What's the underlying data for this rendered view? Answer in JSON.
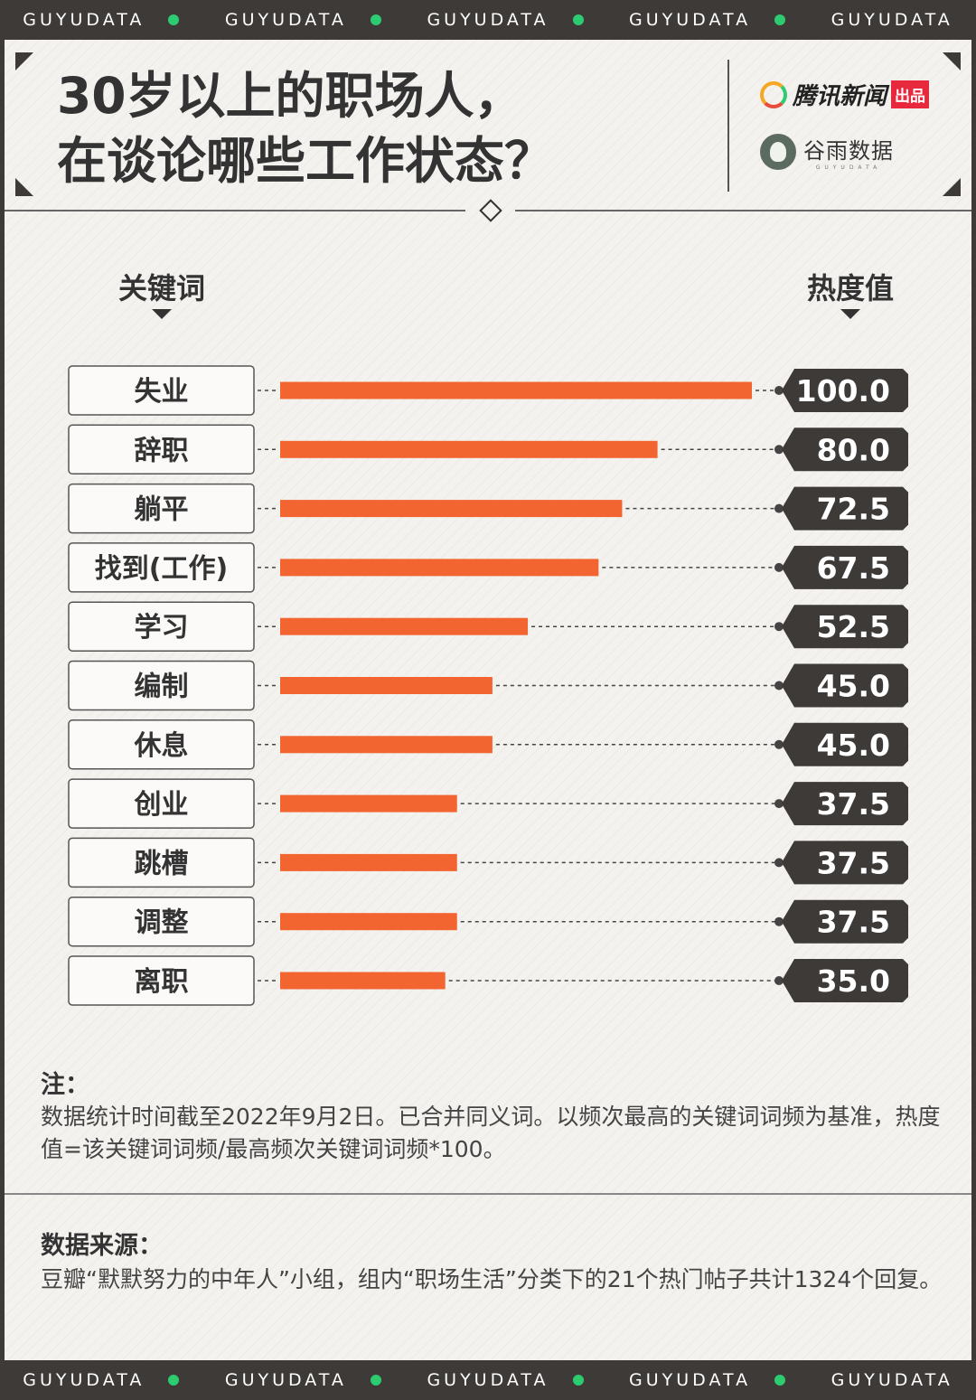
{
  "strip_text": "GUYUDATA",
  "header": {
    "title_line1": "30岁以上的职场人，",
    "title_line2": "在谈论哪些工作状态？",
    "brand_primary": "腾讯新闻",
    "brand_primary_tag": "出品",
    "brand_secondary": "谷雨数据",
    "brand_secondary_sub": "GUYUDATA"
  },
  "columns": {
    "keyword_label": "关键词",
    "value_label": "热度值"
  },
  "colors": {
    "bar": "#f26531",
    "dark": "#3d3a38",
    "accent_dot": "#2ecc71",
    "background": "#f4f2ee"
  },
  "chart_data": {
    "type": "bar",
    "orientation": "horizontal",
    "categories": [
      "失业",
      "辞职",
      "躺平",
      "找到(工作)",
      "学习",
      "编制",
      "休息",
      "创业",
      "跳槽",
      "调整",
      "离职"
    ],
    "values": [
      100.0,
      80.0,
      72.5,
      67.5,
      52.5,
      45.0,
      45.0,
      37.5,
      37.5,
      37.5,
      35.0
    ],
    "value_labels": [
      "100.0",
      "80.0",
      "72.5",
      "67.5",
      "52.5",
      "45.0",
      "45.0",
      "37.5",
      "37.5",
      "37.5",
      "35.0"
    ],
    "xlim": [
      0,
      100
    ],
    "xlabel": "热度值",
    "ylabel": "关键词"
  },
  "note": {
    "title": "注：",
    "body": "数据统计时间截至2022年9月2日。已合并同义词。以频次最高的关键词词频为基准，热度值=该关键词词频/最高频次关键词词频*100。"
  },
  "source": {
    "title": "数据来源：",
    "body": "豆瓣“默默努力的中年人”小组，组内“职场生活”分类下的21个热门帖子共计1324个回复。"
  }
}
